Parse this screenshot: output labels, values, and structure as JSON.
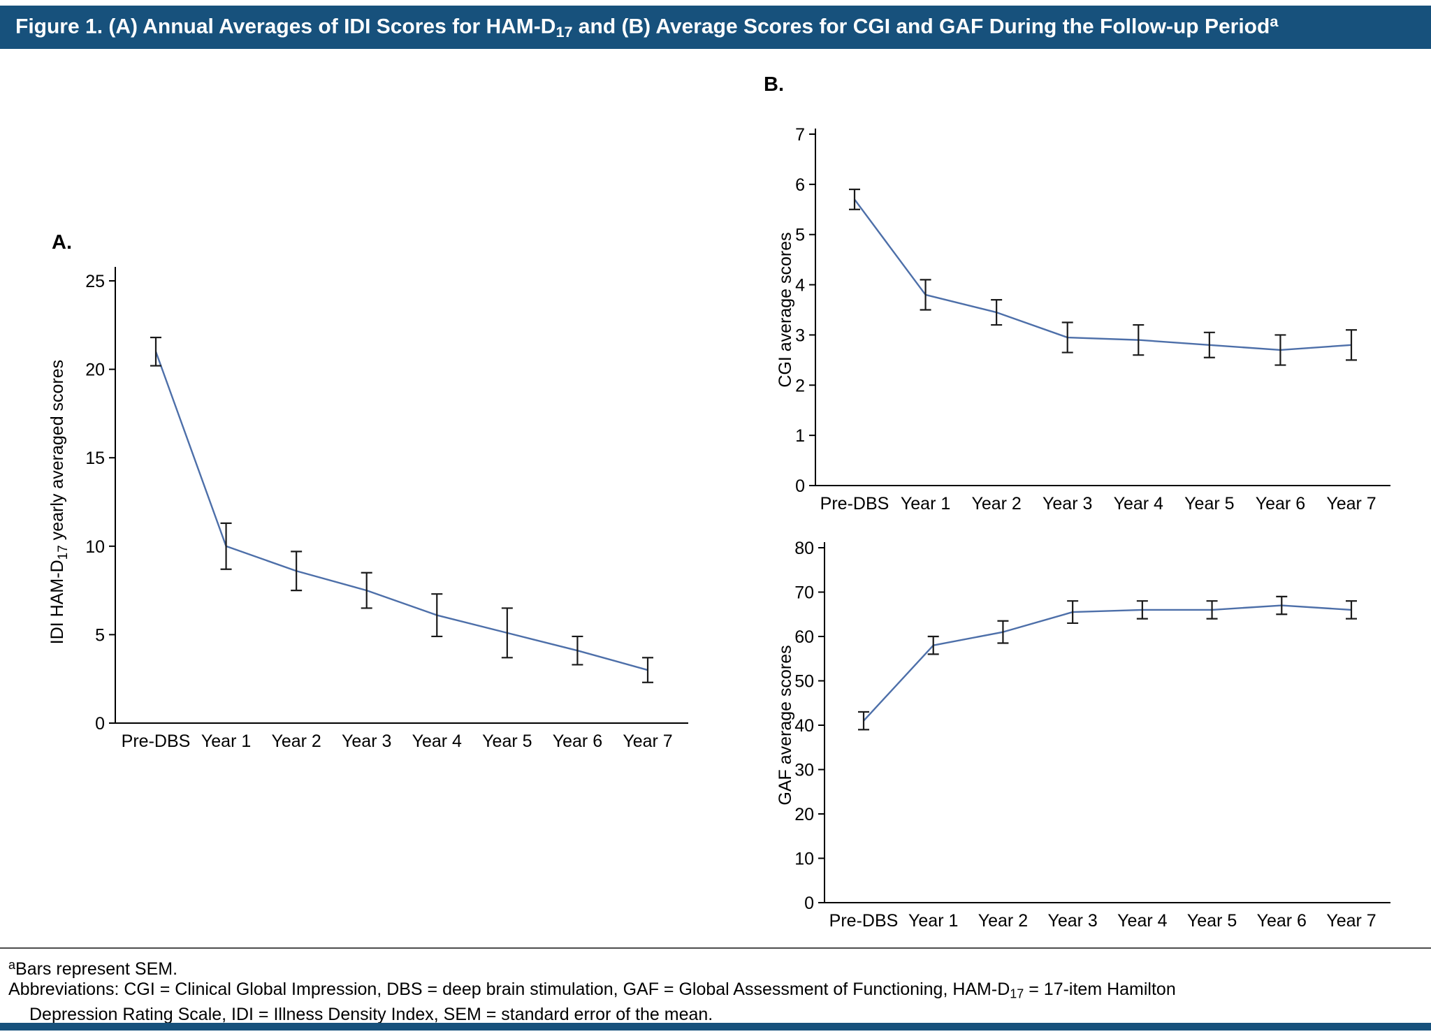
{
  "title": {
    "part1": "Figure 1. (A) Annual Averages of IDI Scores for HAM-D",
    "sub": "17",
    "part2": " and (B) Average Scores for CGI and GAF During the Follow-up Period",
    "sup": "a"
  },
  "panel_labels": {
    "a": "A.",
    "b": "B."
  },
  "colors": {
    "header_bg": "#17517c",
    "line": "#4d6fa9",
    "error_bar": "#1a1a1a",
    "axis": "#000000",
    "divider": "#4d4d4d"
  },
  "footnotes": {
    "sem_note_sup": "a",
    "sem_note": "Bars represent SEM.",
    "abbrev_line1_part1": "Abbreviations: CGI = Clinical Global Impression, DBS = deep brain stimulation, GAF = Global Assessment of Functioning, HAM-D",
    "abbrev_sub": "17",
    "abbrev_line1_part2": " = 17-item Hamilton",
    "abbrev_line2": "Depression Rating Scale, IDI = Illness Density Index, SEM = standard error of the mean."
  },
  "chart_data": [
    {
      "type": "line",
      "name": "IDI HAM-D17 yearly averaged scores",
      "categories": [
        "Pre-DBS",
        "Year 1",
        "Year 2",
        "Year 3",
        "Year 4",
        "Year 5",
        "Year 6",
        "Year 7"
      ],
      "values": [
        21.0,
        10.0,
        8.6,
        7.5,
        6.1,
        5.1,
        4.1,
        3.0
      ],
      "sem": [
        0.8,
        1.3,
        1.1,
        1.0,
        1.2,
        1.4,
        0.8,
        0.7
      ],
      "ylabel": "IDI HAM-D17 yearly averaged scores",
      "ylabel_parts": [
        {
          "text": "IDI HAM-D"
        },
        {
          "text": "17",
          "sub": true
        },
        {
          "text": " yearly averaged scores"
        }
      ],
      "xlabel": "",
      "ylim": [
        0,
        25
      ],
      "ytick_step": 5,
      "grid": false,
      "legend": "none",
      "error_bars": "SEM"
    },
    {
      "type": "line",
      "name": "CGI average scores",
      "categories": [
        "Pre-DBS",
        "Year 1",
        "Year 2",
        "Year 3",
        "Year 4",
        "Year 5",
        "Year 6",
        "Year 7"
      ],
      "values": [
        5.7,
        3.8,
        3.45,
        2.95,
        2.9,
        2.8,
        2.7,
        2.8
      ],
      "sem": [
        0.2,
        0.3,
        0.25,
        0.3,
        0.3,
        0.25,
        0.3,
        0.3
      ],
      "ylabel": "CGI average scores",
      "ylabel_parts": [
        {
          "text": "CGI average scores"
        }
      ],
      "xlabel": "",
      "ylim": [
        0,
        7
      ],
      "ytick_step": 1,
      "grid": false,
      "legend": "none",
      "error_bars": "SEM"
    },
    {
      "type": "line",
      "name": "GAF average scores",
      "categories": [
        "Pre-DBS",
        "Year 1",
        "Year 2",
        "Year 3",
        "Year 4",
        "Year 5",
        "Year 6",
        "Year 7"
      ],
      "values": [
        41,
        58,
        61,
        65.5,
        66,
        66,
        67,
        66
      ],
      "sem": [
        2,
        2,
        2.5,
        2.5,
        2,
        2,
        2,
        2
      ],
      "ylabel": "GAF average scores",
      "ylabel_parts": [
        {
          "text": "GAF average scores"
        }
      ],
      "xlabel": "",
      "ylim": [
        0,
        80
      ],
      "ytick_step": 10,
      "grid": false,
      "legend": "none",
      "error_bars": "SEM"
    }
  ]
}
